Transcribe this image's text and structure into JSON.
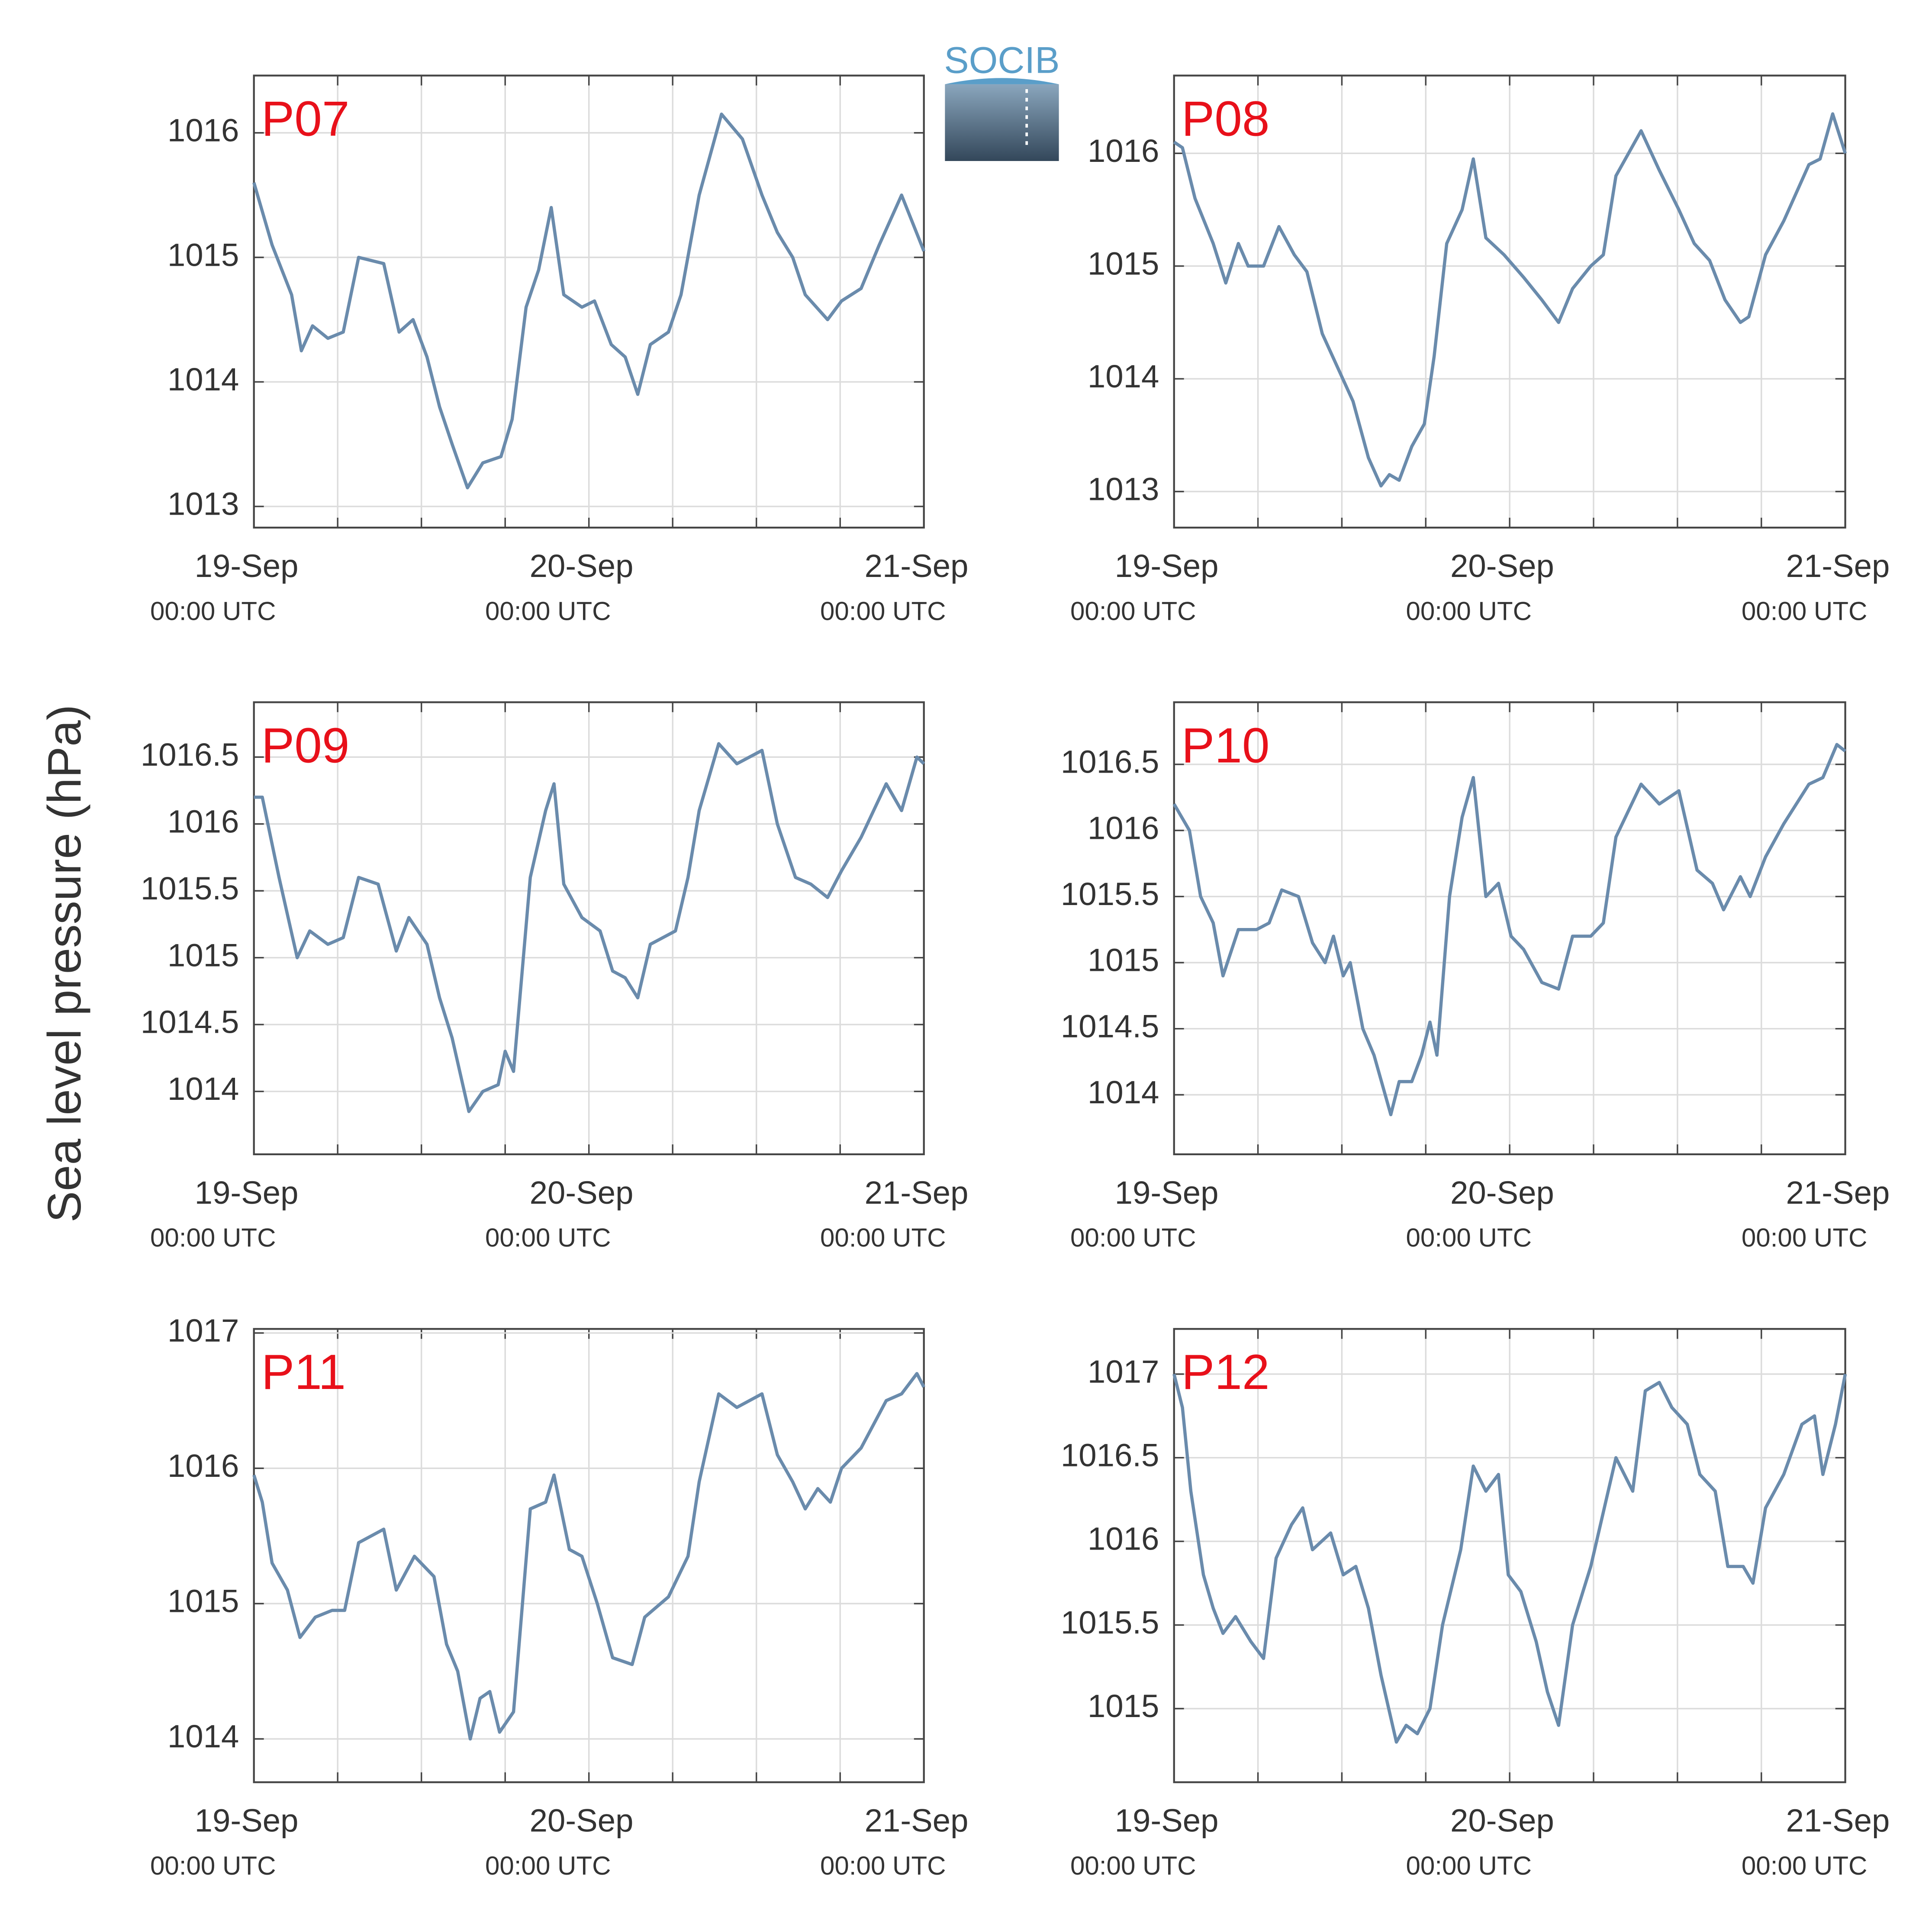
{
  "logo": "SOCIB",
  "y_axis_label": "Sea level pressure (hPa)",
  "chart_data": [
    {
      "type": "line",
      "title": "P07",
      "color": "#6a8bac",
      "grid": true,
      "xlim": [
        0,
        48
      ],
      "ylim": [
        1012.83,
        1016.46
      ],
      "yticks": [
        1013,
        1014,
        1015,
        1016
      ],
      "xticks": [
        {
          "value": 0,
          "label": "19-Sep",
          "sublabel": "00:00 UTC"
        },
        {
          "value": 6,
          "label": null
        },
        {
          "value": 12,
          "label": null
        },
        {
          "value": 18,
          "label": null
        },
        {
          "value": 24,
          "label": "20-Sep",
          "sublabel": "00:00 UTC"
        },
        {
          "value": 30,
          "label": null
        },
        {
          "value": 36,
          "label": null
        },
        {
          "value": 42,
          "label": null
        },
        {
          "value": 48,
          "label": "21-Sep",
          "sublabel": "00:00 UTC"
        }
      ],
      "x": [
        0,
        1.3,
        2.7,
        3.4,
        4.2,
        5.3,
        6.4,
        7.5,
        9.3,
        10.4,
        11.4,
        12.4,
        13.3,
        14.2,
        15.3,
        16.4,
        17.7,
        18.5,
        19.5,
        20.4,
        21.3,
        22.2,
        23.5,
        24.4,
        25.6,
        26.6,
        27.5,
        28.4,
        29.7,
        30.6,
        31.9,
        33.5,
        35.0,
        36.4,
        37.5,
        38.6,
        39.5,
        41.1,
        42.1,
        43.5,
        44.8,
        46.4,
        48.0
      ],
      "values": [
        1015.6,
        1015.1,
        1014.7,
        1014.25,
        1014.45,
        1014.35,
        1014.4,
        1015.0,
        1014.95,
        1014.4,
        1014.5,
        1014.2,
        1013.8,
        1013.5,
        1013.15,
        1013.35,
        1013.4,
        1013.7,
        1014.6,
        1014.9,
        1015.4,
        1014.7,
        1014.6,
        1014.65,
        1014.3,
        1014.2,
        1013.9,
        1014.3,
        1014.4,
        1014.7,
        1015.5,
        1016.15,
        1015.95,
        1015.5,
        1015.2,
        1015.0,
        1014.7,
        1014.5,
        1014.65,
        1014.75,
        1015.1,
        1015.5,
        1015.05
      ]
    },
    {
      "type": "line",
      "title": "P08",
      "color": "#6a8bac",
      "grid": true,
      "xlim": [
        0,
        48
      ],
      "ylim": [
        1012.68,
        1016.69
      ],
      "yticks": [
        1013,
        1014,
        1015,
        1016
      ],
      "xticks": [
        {
          "value": 0,
          "label": "19-Sep",
          "sublabel": "00:00 UTC"
        },
        {
          "value": 6,
          "label": null
        },
        {
          "value": 12,
          "label": null
        },
        {
          "value": 18,
          "label": null
        },
        {
          "value": 24,
          "label": "20-Sep",
          "sublabel": "00:00 UTC"
        },
        {
          "value": 30,
          "label": null
        },
        {
          "value": 36,
          "label": null
        },
        {
          "value": 42,
          "label": null
        },
        {
          "value": 48,
          "label": "21-Sep",
          "sublabel": "00:00 UTC"
        }
      ],
      "x": [
        0,
        0.6,
        1.5,
        2.8,
        3.7,
        4.6,
        5.3,
        6.4,
        7.5,
        8.6,
        9.5,
        10.6,
        11.7,
        12.8,
        13.9,
        14.8,
        15.4,
        16.1,
        17.0,
        17.9,
        18.6,
        19.5,
        20.6,
        21.4,
        22.3,
        23.6,
        25.0,
        26.3,
        27.5,
        28.5,
        29.8,
        30.7,
        31.6,
        33.4,
        34.7,
        36.1,
        37.2,
        38.3,
        39.4,
        40.5,
        41.1,
        42.3,
        43.6,
        45.4,
        46.2,
        47.1,
        48.0
      ],
      "values": [
        1016.1,
        1016.05,
        1015.6,
        1015.2,
        1014.85,
        1015.2,
        1015.0,
        1015.0,
        1015.35,
        1015.1,
        1014.95,
        1014.4,
        1014.1,
        1013.8,
        1013.3,
        1013.05,
        1013.15,
        1013.1,
        1013.4,
        1013.6,
        1014.2,
        1015.2,
        1015.5,
        1015.95,
        1015.25,
        1015.1,
        1014.9,
        1014.7,
        1014.5,
        1014.8,
        1015.0,
        1015.1,
        1015.8,
        1016.2,
        1015.85,
        1015.5,
        1015.2,
        1015.05,
        1014.7,
        1014.5,
        1014.55,
        1015.1,
        1015.4,
        1015.9,
        1015.95,
        1016.35,
        1016.0
      ]
    },
    {
      "type": "line",
      "title": "P09",
      "color": "#6a8bac",
      "grid": true,
      "xlim": [
        0,
        48
      ],
      "ylim": [
        1013.53,
        1016.91
      ],
      "yticks": [
        1014,
        1014.5,
        1015,
        1015.5,
        1016,
        1016.5
      ],
      "xticks": [
        {
          "value": 0,
          "label": "19-Sep",
          "sublabel": "00:00 UTC"
        },
        {
          "value": 6,
          "label": null
        },
        {
          "value": 12,
          "label": null
        },
        {
          "value": 18,
          "label": null
        },
        {
          "value": 24,
          "label": "20-Sep",
          "sublabel": "00:00 UTC"
        },
        {
          "value": 30,
          "label": null
        },
        {
          "value": 36,
          "label": null
        },
        {
          "value": 42,
          "label": null
        },
        {
          "value": 48,
          "label": "21-Sep",
          "sublabel": "00:00 UTC"
        }
      ],
      "x": [
        0,
        0.6,
        1.8,
        3.1,
        4.0,
        5.3,
        6.4,
        7.5,
        8.9,
        10.2,
        11.1,
        12.4,
        13.3,
        14.2,
        15.4,
        16.4,
        17.5,
        18.0,
        18.6,
        19.8,
        20.9,
        21.5,
        22.2,
        23.5,
        24.8,
        25.7,
        26.6,
        27.5,
        28.4,
        30.2,
        31.1,
        31.9,
        33.3,
        34.6,
        36.4,
        37.5,
        38.8,
        39.9,
        41.1,
        42.1,
        43.5,
        45.3,
        46.4,
        47.5,
        48.0
      ],
      "values": [
        1016.2,
        1016.2,
        1015.6,
        1015.0,
        1015.2,
        1015.1,
        1015.15,
        1015.6,
        1015.55,
        1015.05,
        1015.3,
        1015.1,
        1014.7,
        1014.4,
        1013.85,
        1014.0,
        1014.05,
        1014.3,
        1014.15,
        1015.6,
        1016.1,
        1016.3,
        1015.55,
        1015.3,
        1015.2,
        1014.9,
        1014.85,
        1014.7,
        1015.1,
        1015.2,
        1015.6,
        1016.1,
        1016.6,
        1016.45,
        1016.55,
        1016.0,
        1015.6,
        1015.55,
        1015.45,
        1015.65,
        1015.9,
        1016.3,
        1016.1,
        1016.5,
        1016.45
      ]
    },
    {
      "type": "line",
      "title": "P10",
      "color": "#6a8bac",
      "grid": true,
      "xlim": [
        0,
        48
      ],
      "ylim": [
        1013.55,
        1016.97
      ],
      "yticks": [
        1014,
        1014.5,
        1015,
        1015.5,
        1016,
        1016.5
      ],
      "xticks": [
        {
          "value": 0,
          "label": "19-Sep",
          "sublabel": "00:00 UTC"
        },
        {
          "value": 6,
          "label": null
        },
        {
          "value": 12,
          "label": null
        },
        {
          "value": 18,
          "label": null
        },
        {
          "value": 24,
          "label": "20-Sep",
          "sublabel": "00:00 UTC"
        },
        {
          "value": 30,
          "label": null
        },
        {
          "value": 36,
          "label": null
        },
        {
          "value": 42,
          "label": null
        },
        {
          "value": 48,
          "label": "21-Sep",
          "sublabel": "00:00 UTC"
        }
      ],
      "x": [
        0,
        1.1,
        1.9,
        2.8,
        3.5,
        4.6,
        5.9,
        6.8,
        7.7,
        8.9,
        9.9,
        10.8,
        11.4,
        12.1,
        12.6,
        13.5,
        14.3,
        15.5,
        16.1,
        17.0,
        17.7,
        18.3,
        18.8,
        19.7,
        20.6,
        21.4,
        22.3,
        23.2,
        24.1,
        25.0,
        26.3,
        27.5,
        28.5,
        29.8,
        30.7,
        31.6,
        33.4,
        34.7,
        36.1,
        37.4,
        38.5,
        39.3,
        40.5,
        41.2,
        42.3,
        43.6,
        45.4,
        46.4,
        47.4,
        48.0
      ],
      "values": [
        1016.2,
        1016.0,
        1015.5,
        1015.3,
        1014.9,
        1015.25,
        1015.25,
        1015.3,
        1015.55,
        1015.5,
        1015.15,
        1015.0,
        1015.2,
        1014.9,
        1015.0,
        1014.5,
        1014.3,
        1013.85,
        1014.1,
        1014.1,
        1014.3,
        1014.55,
        1014.3,
        1015.5,
        1016.1,
        1016.4,
        1015.5,
        1015.6,
        1015.2,
        1015.1,
        1014.85,
        1014.8,
        1015.2,
        1015.2,
        1015.3,
        1015.95,
        1016.35,
        1016.2,
        1016.3,
        1015.7,
        1015.6,
        1015.4,
        1015.65,
        1015.5,
        1015.8,
        1016.05,
        1016.35,
        1016.4,
        1016.65,
        1016.6
      ]
    },
    {
      "type": "line",
      "title": "P11",
      "color": "#6a8bac",
      "grid": true,
      "xlim": [
        0,
        48
      ],
      "ylim": [
        1013.68,
        1017.03
      ],
      "yticks": [
        1014,
        1015,
        1016,
        1017
      ],
      "xticks": [
        {
          "value": 0,
          "label": "19-Sep",
          "sublabel": "00:00 UTC"
        },
        {
          "value": 6,
          "label": null
        },
        {
          "value": 12,
          "label": null
        },
        {
          "value": 18,
          "label": null
        },
        {
          "value": 24,
          "label": "20-Sep",
          "sublabel": "00:00 UTC"
        },
        {
          "value": 30,
          "label": null
        },
        {
          "value": 36,
          "label": null
        },
        {
          "value": 42,
          "label": null
        },
        {
          "value": 48,
          "label": "21-Sep",
          "sublabel": "00:00 UTC"
        }
      ],
      "x": [
        0,
        0.6,
        1.3,
        2.4,
        3.3,
        4.4,
        5.6,
        6.5,
        7.5,
        9.3,
        10.2,
        11.5,
        12.9,
        13.8,
        14.6,
        15.5,
        16.2,
        16.9,
        17.6,
        18.6,
        19.8,
        20.9,
        21.5,
        22.6,
        23.5,
        24.6,
        25.7,
        27.1,
        28.0,
        29.7,
        31.1,
        31.9,
        33.3,
        34.6,
        36.4,
        37.5,
        38.6,
        39.5,
        40.4,
        41.3,
        42.1,
        43.5,
        45.3,
        46.4,
        47.5,
        48.0
      ],
      "values": [
        1015.95,
        1015.75,
        1015.3,
        1015.1,
        1014.75,
        1014.9,
        1014.95,
        1014.95,
        1015.45,
        1015.55,
        1015.1,
        1015.35,
        1015.2,
        1014.7,
        1014.5,
        1014.0,
        1014.3,
        1014.35,
        1014.05,
        1014.2,
        1015.7,
        1015.75,
        1015.95,
        1015.4,
        1015.35,
        1015.0,
        1014.6,
        1014.55,
        1014.9,
        1015.05,
        1015.35,
        1015.9,
        1016.55,
        1016.45,
        1016.55,
        1016.1,
        1015.9,
        1015.7,
        1015.85,
        1015.75,
        1016.0,
        1016.15,
        1016.5,
        1016.55,
        1016.7,
        1016.6
      ]
    },
    {
      "type": "line",
      "title": "P12",
      "color": "#6a8bac",
      "grid": true,
      "xlim": [
        0,
        48
      ],
      "ylim": [
        1014.56,
        1017.27
      ],
      "yticks": [
        1015,
        1015.5,
        1016,
        1016.5,
        1017
      ],
      "xticks": [
        {
          "value": 0,
          "label": "19-Sep",
          "sublabel": "00:00 UTC"
        },
        {
          "value": 6,
          "label": null
        },
        {
          "value": 12,
          "label": null
        },
        {
          "value": 18,
          "label": null
        },
        {
          "value": 24,
          "label": "20-Sep",
          "sublabel": "00:00 UTC"
        },
        {
          "value": 30,
          "label": null
        },
        {
          "value": 36,
          "label": null
        },
        {
          "value": 42,
          "label": null
        },
        {
          "value": 48,
          "label": "21-Sep",
          "sublabel": "00:00 UTC"
        }
      ],
      "x": [
        0,
        0.6,
        1.2,
        2.1,
        2.8,
        3.5,
        4.4,
        5.5,
        6.4,
        7.3,
        8.4,
        9.2,
        9.9,
        11.2,
        12.1,
        13.0,
        13.9,
        14.8,
        15.9,
        16.6,
        17.4,
        18.3,
        19.2,
        20.5,
        21.4,
        22.3,
        23.2,
        23.9,
        24.8,
        25.9,
        26.7,
        27.5,
        28.5,
        29.8,
        31.6,
        32.8,
        33.7,
        34.7,
        35.6,
        36.7,
        37.6,
        38.7,
        39.6,
        40.7,
        41.4,
        42.3,
        43.6,
        44.9,
        45.8,
        46.4,
        47.3,
        48.0
      ],
      "values": [
        1017.0,
        1016.8,
        1016.3,
        1015.8,
        1015.6,
        1015.45,
        1015.55,
        1015.4,
        1015.3,
        1015.9,
        1016.1,
        1016.2,
        1015.95,
        1016.05,
        1015.8,
        1015.85,
        1015.6,
        1015.2,
        1014.8,
        1014.9,
        1014.85,
        1015.0,
        1015.5,
        1015.95,
        1016.45,
        1016.3,
        1016.4,
        1015.8,
        1015.7,
        1015.4,
        1015.1,
        1014.9,
        1015.5,
        1015.85,
        1016.5,
        1016.3,
        1016.9,
        1016.95,
        1016.8,
        1016.7,
        1016.4,
        1016.3,
        1015.85,
        1015.85,
        1015.75,
        1016.2,
        1016.4,
        1016.7,
        1016.75,
        1016.4,
        1016.7,
        1017.0
      ]
    }
  ]
}
